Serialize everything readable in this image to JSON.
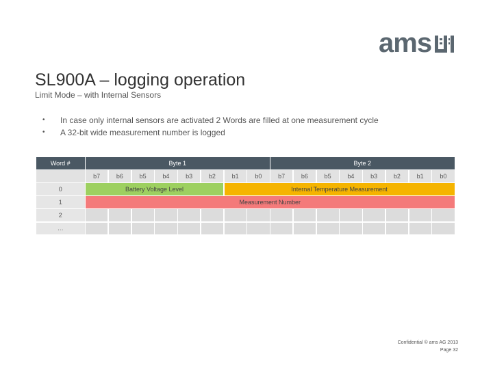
{
  "logo": {
    "text": "ams"
  },
  "title": "SL900A – logging operation",
  "subtitle": "Limit Mode – with Internal Sensors",
  "bullets": [
    "In case only internal sensors are activated 2 Words are filled at one measurement cycle",
    "A 32-bit wide measurement number is logged"
  ],
  "table": {
    "word_header": "Word #",
    "byte1": "Byte 1",
    "byte2": "Byte 2",
    "bits": [
      "b7",
      "b6",
      "b5",
      "b4",
      "b3",
      "b2",
      "b1",
      "b0",
      "b7",
      "b6",
      "b5",
      "b4",
      "b3",
      "b2",
      "b1",
      "b0"
    ],
    "rows": [
      "0",
      "1",
      "2",
      "…"
    ],
    "battery": "Battery Voltage Level",
    "internal_temp": "Internal Temperature Measurement",
    "measurement_number": "Measurement Number"
  },
  "footer": {
    "confidential": "Confidential © ams AG 2013",
    "page": "Page 32"
  },
  "colors": {
    "header": "#4a5863",
    "battery": "#9dd060",
    "temp": "#f5b400",
    "mnum": "#f47a7a"
  }
}
